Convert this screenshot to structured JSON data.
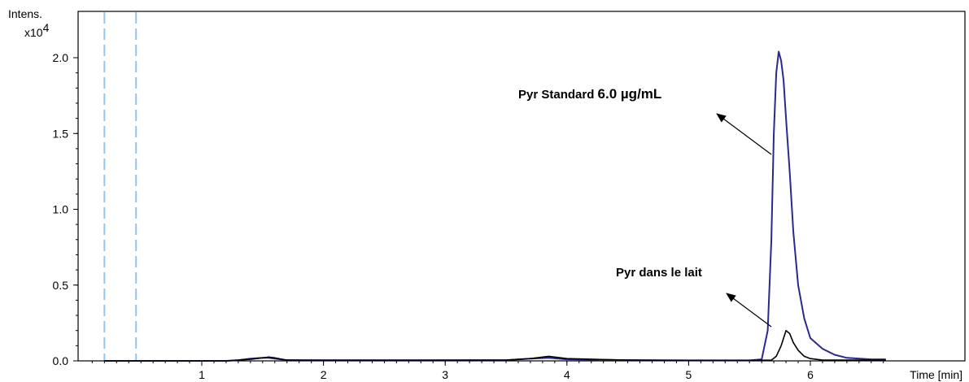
{
  "chart_data": {
    "type": "line",
    "xlabel": "Time [min]",
    "ylabel": "Intens.",
    "y_multiplier": "x10",
    "y_multiplier_exp": "4",
    "xlim": [
      0.0,
      6.62
    ],
    "ylim": [
      0.0,
      2.1
    ],
    "x_ticks": [
      1,
      2,
      3,
      4,
      5,
      6
    ],
    "y_ticks": [
      0.0,
      0.5,
      1.0,
      1.5,
      2.0
    ],
    "y_tick_labels": [
      "0.0",
      "0.5",
      "1.0",
      "1.5",
      "2.0"
    ],
    "x_tick_labels": [
      "1",
      "2",
      "3",
      "4",
      "5",
      "6"
    ],
    "reference_lines_x": [
      0.2,
      0.46
    ],
    "colors": {
      "standard": "#2a2a8c",
      "milk": "#000000",
      "reference": "#8fc6f0"
    },
    "series": [
      {
        "x": [
          0.2,
          1.2,
          1.3,
          1.4,
          1.5,
          1.55,
          1.6,
          1.7,
          2.0,
          2.8,
          3.5,
          3.7,
          3.85,
          4.0,
          4.5,
          5.0,
          5.5,
          5.6,
          5.65,
          5.68,
          5.7,
          5.72,
          5.74,
          5.76,
          5.78,
          5.8,
          5.83,
          5.86,
          5.9,
          5.95,
          6.0,
          6.1,
          6.2,
          6.3,
          6.5,
          6.62
        ],
        "y": [
          0.0,
          0.0,
          0.005,
          0.015,
          0.02,
          0.02,
          0.015,
          0.005,
          0.005,
          0.005,
          0.005,
          0.015,
          0.02,
          0.01,
          0.005,
          0.003,
          0.003,
          0.01,
          0.2,
          0.8,
          1.5,
          1.9,
          2.04,
          1.98,
          1.85,
          1.6,
          1.25,
          0.85,
          0.5,
          0.28,
          0.15,
          0.08,
          0.04,
          0.02,
          0.01,
          0.01
        ]
      },
      {
        "x": [
          0.2,
          1.2,
          1.4,
          1.5,
          1.55,
          1.6,
          1.7,
          2.0,
          2.8,
          3.5,
          3.7,
          3.85,
          4.0,
          4.5,
          5.0,
          5.5,
          5.68,
          5.72,
          5.76,
          5.8,
          5.83,
          5.86,
          5.9,
          5.95,
          6.0,
          6.1,
          6.3,
          6.5,
          6.62
        ],
        "y": [
          0.0,
          0.0,
          0.01,
          0.02,
          0.025,
          0.02,
          0.005,
          0.003,
          0.003,
          0.005,
          0.015,
          0.03,
          0.015,
          0.005,
          0.003,
          0.003,
          0.005,
          0.03,
          0.1,
          0.2,
          0.18,
          0.12,
          0.07,
          0.03,
          0.015,
          0.005,
          0.005,
          0.005,
          0.005
        ]
      }
    ],
    "annotations": [
      {
        "text_main": "Pyr Standard ",
        "text_value": "6.0 µg/mL"
      },
      {
        "text_main": "Pyr dans le lait",
        "text_value": ""
      }
    ]
  }
}
